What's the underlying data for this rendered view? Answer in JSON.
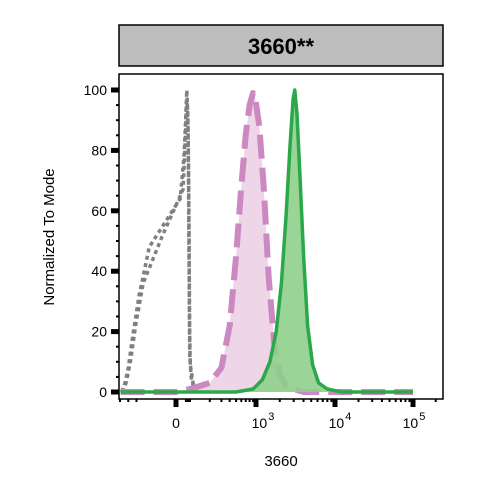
{
  "chart_data": {
    "type": "area",
    "title": "3660**",
    "xlabel": "3660",
    "ylabel": "Normalized To Mode",
    "ylim": [
      0,
      100
    ],
    "yticks": [
      0,
      20,
      40,
      60,
      80,
      100
    ],
    "xscale": "biexponential",
    "xticks": [
      {
        "base": "0",
        "exp": ""
      },
      {
        "base": "10",
        "exp": "3"
      },
      {
        "base": "10",
        "exp": "4"
      },
      {
        "base": "10",
        "exp": "5"
      }
    ],
    "grid": false,
    "legend": "none",
    "series": [
      {
        "style": "dotted",
        "color": "#808080",
        "fill": "none",
        "points": [
          [
            -90,
            0
          ],
          [
            -70,
            2
          ],
          [
            -50,
            8
          ],
          [
            -35,
            18
          ],
          [
            -20,
            32
          ],
          [
            -8,
            48
          ],
          [
            3,
            64
          ],
          [
            13,
            78
          ],
          [
            22,
            89
          ],
          [
            29,
            96
          ],
          [
            34,
            100
          ],
          [
            39,
            97
          ],
          [
            45,
            93
          ],
          [
            52,
            87
          ],
          [
            60,
            72
          ],
          [
            68,
            55
          ],
          [
            77,
            38
          ],
          [
            86,
            22
          ],
          [
            95,
            12
          ],
          [
            104,
            5
          ],
          [
            115,
            1
          ],
          [
            128,
            0
          ]
        ]
      },
      {
        "style": "dotted",
        "color": "#808080",
        "fill": "none",
        "points": [
          [
            -80,
            0
          ],
          [
            -60,
            3
          ],
          [
            -42,
            10
          ],
          [
            -27,
            22
          ],
          [
            -14,
            36
          ],
          [
            -2,
            52
          ],
          [
            9,
            67
          ],
          [
            18,
            80
          ],
          [
            26,
            90
          ],
          [
            33,
            96
          ],
          [
            38,
            97
          ],
          [
            44,
            94
          ],
          [
            50,
            90
          ],
          [
            57,
            82
          ],
          [
            65,
            68
          ],
          [
            74,
            50
          ],
          [
            83,
            33
          ],
          [
            92,
            19
          ],
          [
            101,
            9
          ],
          [
            111,
            3
          ],
          [
            122,
            1
          ],
          [
            135,
            0
          ]
        ]
      },
      {
        "style": "dashed",
        "color": "#cc88c0",
        "fill": "#ecd0e6",
        "points": [
          [
            -95,
            0
          ],
          [
            0,
            0
          ],
          [
            100,
            1
          ],
          [
            200,
            3
          ],
          [
            300,
            8
          ],
          [
            400,
            22
          ],
          [
            500,
            45
          ],
          [
            600,
            68
          ],
          [
            700,
            85
          ],
          [
            800,
            95
          ],
          [
            900,
            99
          ],
          [
            980,
            97
          ],
          [
            1100,
            88
          ],
          [
            1250,
            68
          ],
          [
            1450,
            38
          ],
          [
            1700,
            16
          ],
          [
            2000,
            6
          ],
          [
            2400,
            2
          ],
          [
            3000,
            1
          ],
          [
            4000,
            0
          ],
          [
            100000,
            0
          ]
        ]
      },
      {
        "style": "solid",
        "color": "#2aa84a",
        "fill": "#8fcf8c",
        "points": [
          [
            -95,
            0
          ],
          [
            0,
            0
          ],
          [
            500,
            0
          ],
          [
            900,
            1
          ],
          [
            1200,
            4
          ],
          [
            1500,
            10
          ],
          [
            1800,
            20
          ],
          [
            2100,
            36
          ],
          [
            2400,
            58
          ],
          [
            2700,
            82
          ],
          [
            2950,
            97
          ],
          [
            3100,
            100
          ],
          [
            3300,
            92
          ],
          [
            3600,
            72
          ],
          [
            4000,
            45
          ],
          [
            4500,
            22
          ],
          [
            5200,
            9
          ],
          [
            6200,
            3
          ],
          [
            8000,
            1
          ],
          [
            12000,
            0
          ],
          [
            100000,
            0
          ]
        ]
      }
    ]
  }
}
